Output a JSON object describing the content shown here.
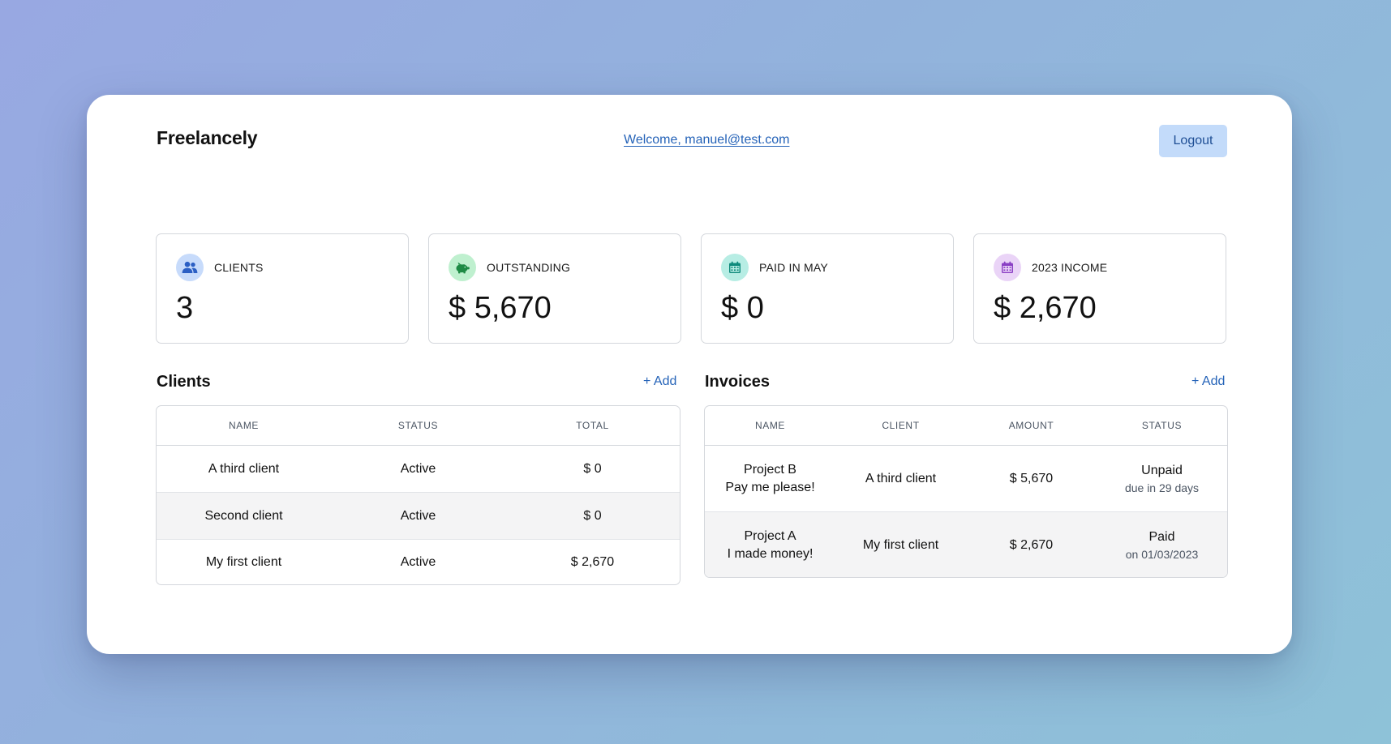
{
  "header": {
    "brand": "Freelancely",
    "welcome": "Welcome, manuel@test.com",
    "logout_label": "Logout"
  },
  "stats": [
    {
      "label": "CLIENTS",
      "value": "3",
      "icon": "users-icon",
      "icon_bg": "#c7dbfb",
      "icon_color": "#2b5fc4"
    },
    {
      "label": "OUTSTANDING",
      "value": "$ 5,670",
      "icon": "piggy-bank-icon",
      "icon_bg": "#bff0cf",
      "icon_color": "#1e8a45"
    },
    {
      "label": "PAID IN MAY",
      "value": "$ 0",
      "icon": "calendar-icon",
      "icon_bg": "#b7ede4",
      "icon_color": "#0f8a7c"
    },
    {
      "label": "2023 INCOME",
      "value": "$ 2,670",
      "icon": "calendar-icon",
      "icon_bg": "#ead4f7",
      "icon_color": "#8a3fc4"
    }
  ],
  "clients": {
    "title": "Clients",
    "add_label": "+ Add",
    "columns": [
      "NAME",
      "STATUS",
      "TOTAL"
    ],
    "rows": [
      {
        "name": "A third client",
        "status": "Active",
        "total": "$ 0"
      },
      {
        "name": "Second client",
        "status": "Active",
        "total": "$ 0"
      },
      {
        "name": "My first client",
        "status": "Active",
        "total": "$ 2,670"
      }
    ]
  },
  "invoices": {
    "title": "Invoices",
    "add_label": "+ Add",
    "columns": [
      "NAME",
      "CLIENT",
      "AMOUNT",
      "STATUS"
    ],
    "rows": [
      {
        "name": "Project B",
        "description": "Pay me please!",
        "client": "A third client",
        "amount": "$ 5,670",
        "status": "Unpaid",
        "status_detail": "due in 29 days"
      },
      {
        "name": "Project A",
        "description": "I made money!",
        "client": "My first client",
        "amount": "$ 2,670",
        "status": "Paid",
        "status_detail": "on 01/03/2023"
      }
    ]
  },
  "colors": {
    "accent": "#2563b8",
    "logout_bg": "#c3dbfa"
  }
}
